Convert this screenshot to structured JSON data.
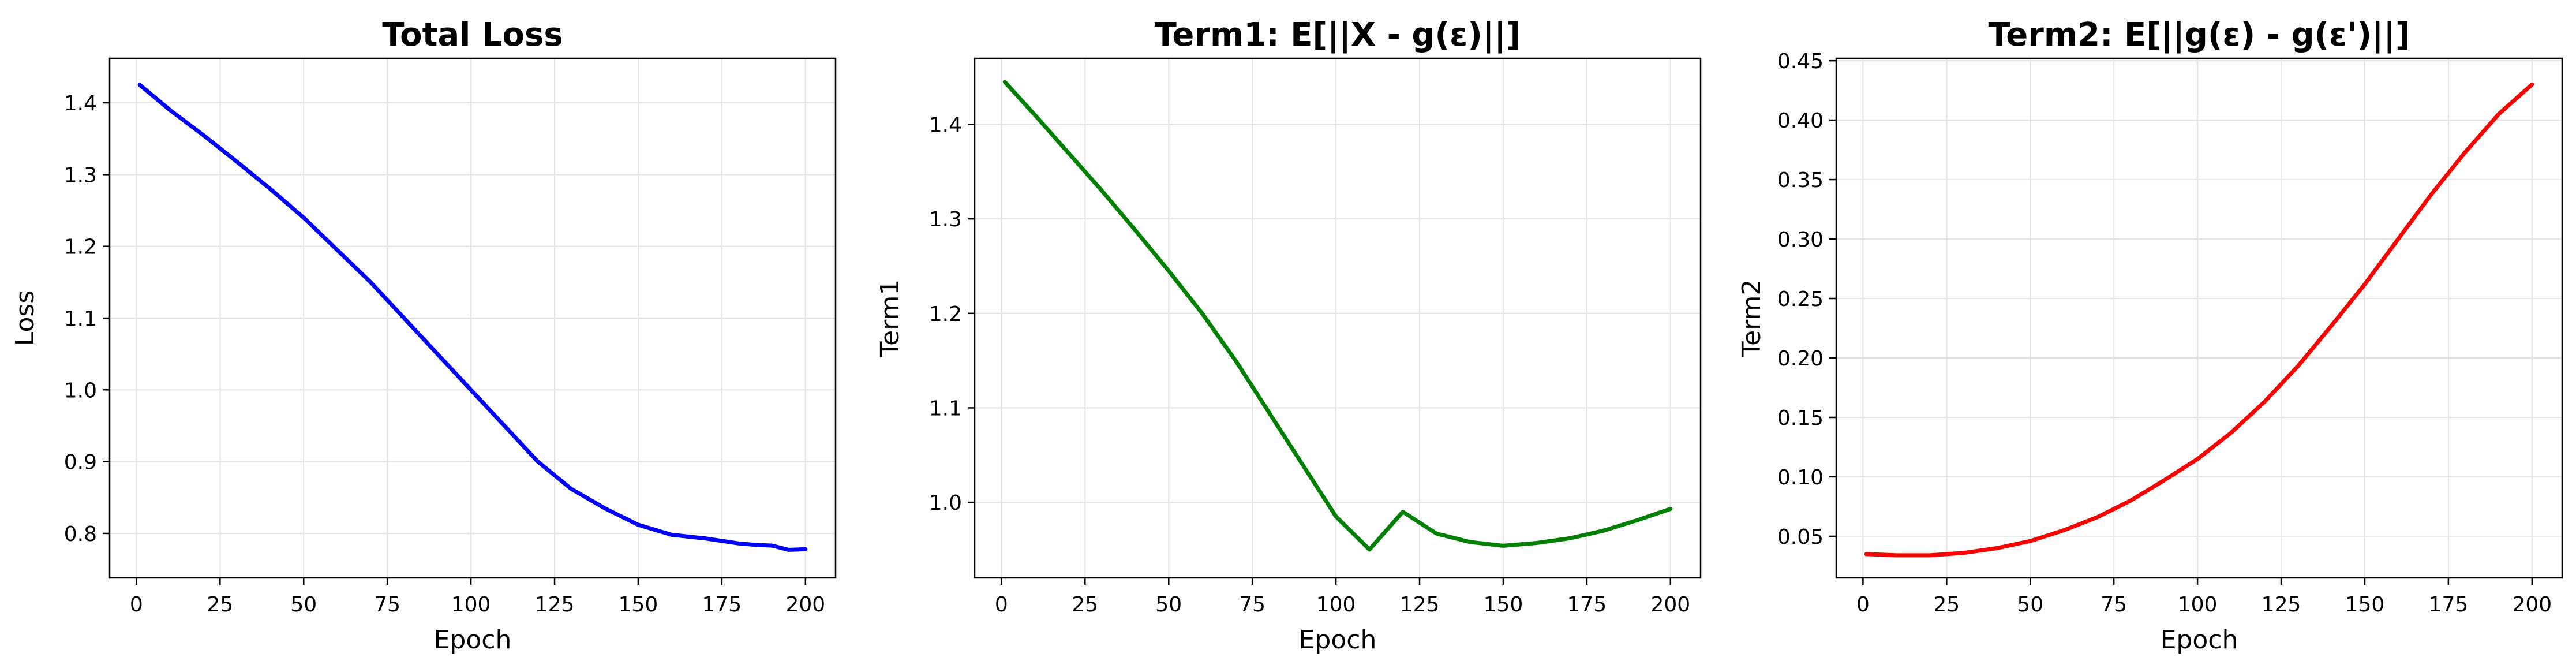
{
  "chart_data": [
    {
      "type": "line",
      "title": "Total Loss",
      "xlabel": "Epoch",
      "ylabel": "Loss",
      "xlim": [
        -8,
        209
      ],
      "ylim": [
        0.738,
        1.462
      ],
      "xticks": [
        0,
        25,
        50,
        75,
        100,
        125,
        150,
        175,
        200
      ],
      "yticks": [
        0.8,
        0.9,
        1.0,
        1.1,
        1.2,
        1.3,
        1.4
      ],
      "grid": true,
      "color": "#0000ff",
      "series": [
        {
          "x": [
            1,
            10,
            20,
            30,
            40,
            50,
            60,
            70,
            80,
            90,
            100,
            110,
            120,
            130,
            140,
            150,
            160,
            170,
            180,
            185,
            190,
            195,
            200
          ],
          "y": [
            1.425,
            1.39,
            1.355,
            1.318,
            1.28,
            1.24,
            1.195,
            1.15,
            1.1,
            1.05,
            1.0,
            0.95,
            0.9,
            0.862,
            0.835,
            0.812,
            0.798,
            0.793,
            0.786,
            0.784,
            0.783,
            0.777,
            0.778
          ]
        }
      ]
    },
    {
      "type": "line",
      "title": "Term1: E[||X - g(ε)||]",
      "xlabel": "Epoch",
      "ylabel": "Term1",
      "xlim": [
        -8,
        209
      ],
      "ylim": [
        0.92,
        1.47
      ],
      "xticks": [
        0,
        25,
        50,
        75,
        100,
        125,
        150,
        175,
        200
      ],
      "yticks": [
        1.0,
        1.1,
        1.2,
        1.3,
        1.4
      ],
      "grid": true,
      "color": "#008000",
      "series": [
        {
          "x": [
            1,
            10,
            20,
            30,
            40,
            50,
            60,
            70,
            80,
            90,
            100,
            110,
            120,
            130,
            140,
            150,
            160,
            170,
            180,
            190,
            200
          ],
          "y": [
            1.445,
            1.41,
            1.37,
            1.33,
            1.288,
            1.245,
            1.2,
            1.15,
            1.095,
            1.04,
            0.985,
            0.95,
            0.99,
            0.967,
            0.958,
            0.954,
            0.957,
            0.962,
            0.97,
            0.981,
            0.993
          ]
        }
      ]
    },
    {
      "type": "line",
      "title": "Term2: E[||g(ε) - g(ε')||]",
      "xlabel": "Epoch",
      "ylabel": "Term2",
      "xlim": [
        -8,
        209
      ],
      "ylim": [
        0.015,
        0.452
      ],
      "xticks": [
        0,
        25,
        50,
        75,
        100,
        125,
        150,
        175,
        200
      ],
      "yticks": [
        0.05,
        0.1,
        0.15,
        0.2,
        0.25,
        0.3,
        0.35,
        0.4,
        0.45
      ],
      "grid": true,
      "color": "#ff0000",
      "series": [
        {
          "x": [
            1,
            10,
            20,
            30,
            40,
            50,
            60,
            70,
            80,
            90,
            100,
            110,
            120,
            130,
            140,
            150,
            160,
            170,
            180,
            190,
            200
          ],
          "y": [
            0.035,
            0.034,
            0.034,
            0.036,
            0.04,
            0.046,
            0.055,
            0.066,
            0.08,
            0.097,
            0.115,
            0.137,
            0.163,
            0.193,
            0.227,
            0.262,
            0.3,
            0.338,
            0.373,
            0.405,
            0.43
          ]
        }
      ]
    }
  ]
}
